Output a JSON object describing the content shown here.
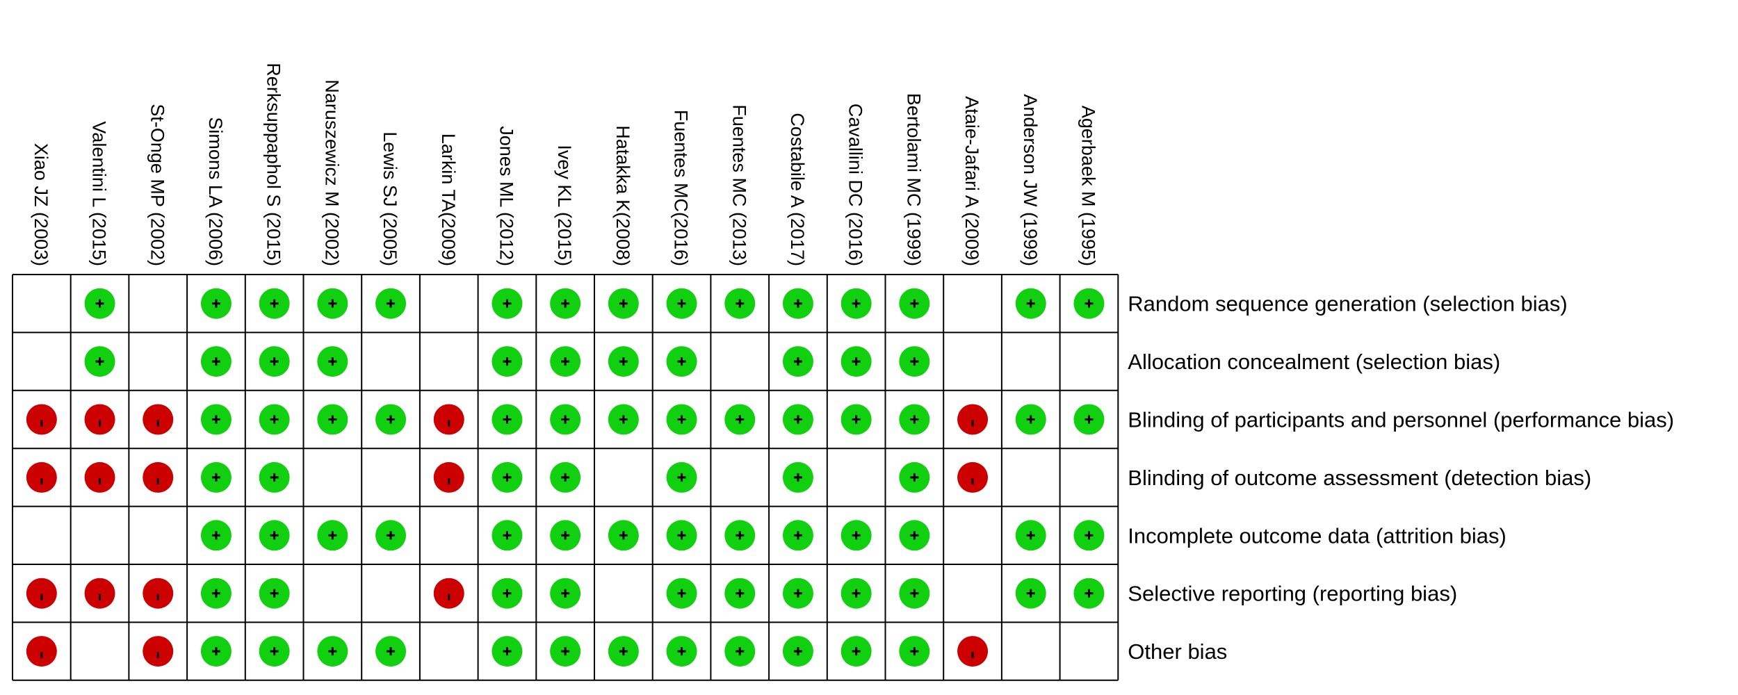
{
  "chart_data": {
    "type": "table",
    "studies": [
      "Xiao JZ (2003)",
      "Valentini L (2015)",
      "St-Onge MP (2002)",
      "Simons LA (2006)",
      "Rerksuppaphol S (2015)",
      "Naruszewicz M (2002)",
      "Lewis SJ (2005)",
      "Larkin TA(2009)",
      "Jones ML (2012)",
      "Ivey KL (2015)",
      "Hatakka K(2008)",
      "Fuentes MC(2016)",
      "Fuentes MC (2013)",
      "Costabile A (2017)",
      "Cavallini DC (2016)",
      "Bertolami MC (1999)",
      "Ataie-Jafari A (2009)",
      "Anderson JW (1999)",
      "Agerbaek M (1995)"
    ],
    "domains": [
      "Random sequence generation (selection bias)",
      "Allocation concealment (selection bias)",
      "Blinding of participants and personnel (performance bias)",
      "Blinding of outcome assessment (detection bias)",
      "Incomplete outcome data (attrition bias)",
      "Selective reporting (reporting bias)",
      "Other bias"
    ],
    "legend": {
      "low": {
        "symbol": "+",
        "color": "#10d010"
      },
      "high": {
        "symbol": "-",
        "color": "#cc0000"
      },
      "unclear": {
        "symbol": "",
        "color": "#ffffff"
      }
    },
    "judgements": [
      [
        "unclear",
        "low",
        "unclear",
        "low",
        "low",
        "low",
        "low",
        "unclear",
        "low",
        "low",
        "low",
        "low",
        "low",
        "low",
        "low",
        "low",
        "unclear",
        "low",
        "low"
      ],
      [
        "unclear",
        "low",
        "unclear",
        "low",
        "low",
        "low",
        "unclear",
        "unclear",
        "low",
        "low",
        "low",
        "low",
        "unclear",
        "low",
        "low",
        "low",
        "unclear",
        "unclear",
        "unclear"
      ],
      [
        "high",
        "high",
        "high",
        "low",
        "low",
        "low",
        "low",
        "high",
        "low",
        "low",
        "low",
        "low",
        "low",
        "low",
        "low",
        "low",
        "high",
        "low",
        "low"
      ],
      [
        "high",
        "high",
        "high",
        "low",
        "low",
        "unclear",
        "unclear",
        "high",
        "low",
        "low",
        "unclear",
        "low",
        "unclear",
        "low",
        "unclear",
        "low",
        "high",
        "unclear",
        "unclear"
      ],
      [
        "unclear",
        "unclear",
        "unclear",
        "low",
        "low",
        "low",
        "low",
        "unclear",
        "low",
        "low",
        "low",
        "low",
        "low",
        "low",
        "low",
        "low",
        "unclear",
        "low",
        "low"
      ],
      [
        "high",
        "high",
        "high",
        "low",
        "low",
        "unclear",
        "unclear",
        "high",
        "low",
        "low",
        "unclear",
        "low",
        "low",
        "low",
        "low",
        "low",
        "unclear",
        "low",
        "low"
      ],
      [
        "high",
        "unclear",
        "high",
        "low",
        "low",
        "low",
        "low",
        "unclear",
        "low",
        "low",
        "low",
        "low",
        "low",
        "low",
        "low",
        "low",
        "high",
        "unclear",
        "unclear"
      ]
    ]
  }
}
